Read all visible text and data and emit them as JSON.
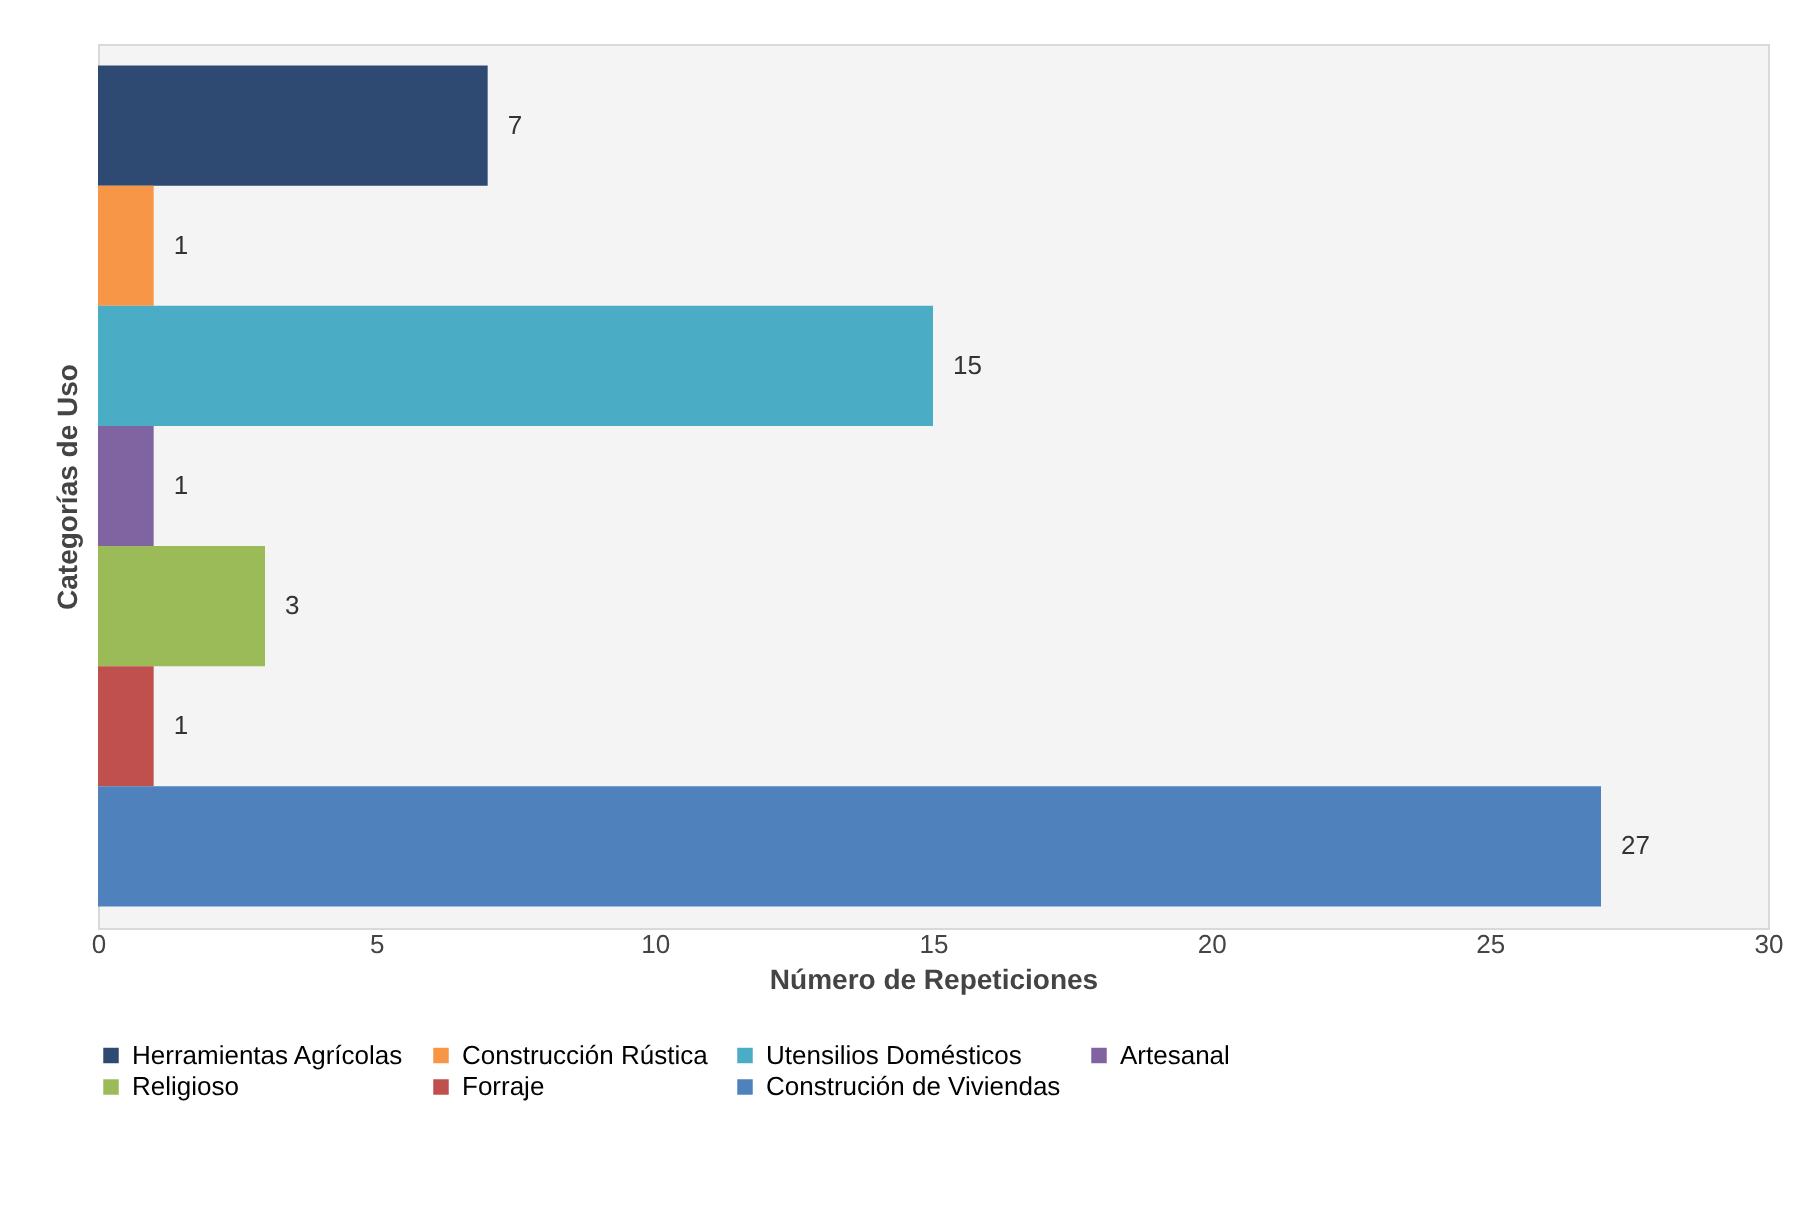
{
  "chart_data": {
    "type": "bar",
    "orientation": "horizontal",
    "stacked": true,
    "xlabel": "Número de Repeticiones",
    "ylabel": "Categorías de Uso",
    "categories": [
      null,
      null,
      null,
      null,
      null,
      null,
      null
    ],
    "series": [
      {
        "name": "Herramientas Agrícolas",
        "color": "#2e4a73",
        "values": [
          7,
          null,
          null,
          null,
          null,
          null,
          null
        ]
      },
      {
        "name": "Construcción Rústica",
        "color": "#f79646",
        "values": [
          null,
          1,
          null,
          null,
          null,
          null,
          null
        ]
      },
      {
        "name": "Utensilios Domésticos",
        "color": "#4bacc6",
        "values": [
          null,
          null,
          15,
          null,
          null,
          null,
          null
        ]
      },
      {
        "name": "Artesanal",
        "color": "#8064a2",
        "values": [
          null,
          null,
          null,
          1,
          null,
          null,
          null
        ]
      },
      {
        "name": "Religioso",
        "color": "#9bbb59",
        "values": [
          null,
          null,
          null,
          null,
          3,
          null,
          null
        ]
      },
      {
        "name": "Forraje",
        "color": "#c0504d",
        "values": [
          null,
          null,
          null,
          null,
          null,
          1,
          null
        ]
      },
      {
        "name": "Construción de Viviendas",
        "color": "#4f81bd",
        "values": [
          null,
          null,
          null,
          null,
          null,
          null,
          27
        ]
      }
    ],
    "xlim": [
      0,
      30
    ],
    "xticks": [
      0,
      5,
      10,
      15,
      20,
      25,
      30
    ],
    "grid": false,
    "legend": "bottom",
    "data_labels": true,
    "tick_labels": "x"
  }
}
